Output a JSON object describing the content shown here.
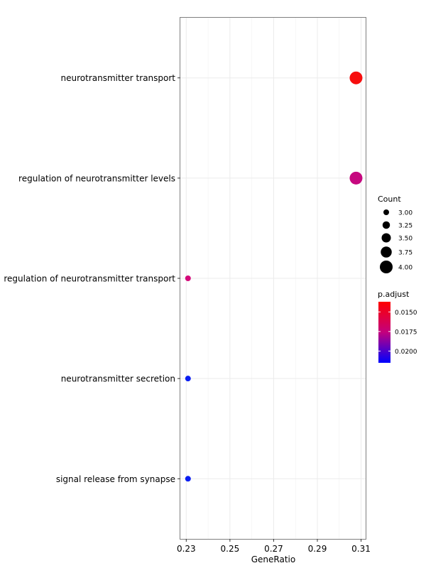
{
  "chart_data": {
    "type": "scatter",
    "xlabel": "GeneRatio",
    "xlim": [
      0.2273,
      0.3121
    ],
    "xticks": [
      0.23,
      0.25,
      0.27,
      0.29,
      0.31
    ],
    "xtick_labels": [
      "0.23",
      "0.25",
      "0.27",
      "0.29",
      "0.31"
    ],
    "categories": [
      "neurotransmitter transport",
      "regulation of neurotransmitter levels",
      "regulation of neurotransmitter transport",
      "neurotransmitter secretion",
      "signal release from synapse"
    ],
    "points": [
      {
        "term": "neurotransmitter transport",
        "gene_ratio": 0.3077,
        "count": 4,
        "p_adjust": 0.0137,
        "color": "#f70e0e"
      },
      {
        "term": "regulation of neurotransmitter levels",
        "gene_ratio": 0.3077,
        "count": 4,
        "p_adjust": 0.0176,
        "color": "#c6087f"
      },
      {
        "term": "regulation of neurotransmitter transport",
        "gene_ratio": 0.2308,
        "count": 3,
        "p_adjust": 0.0171,
        "color": "#d4097a"
      },
      {
        "term": "neurotransmitter secretion",
        "gene_ratio": 0.2308,
        "count": 3,
        "p_adjust": 0.0215,
        "color": "#0a1ef2"
      },
      {
        "term": "signal release from synapse",
        "gene_ratio": 0.2308,
        "count": 3,
        "p_adjust": 0.0215,
        "color": "#0a1ef2"
      }
    ],
    "legend_count": {
      "title": "Count",
      "values": [
        3.0,
        3.25,
        3.5,
        3.75,
        4.0
      ],
      "labels": [
        "3.00",
        "3.25",
        "3.50",
        "3.75",
        "4.00"
      ]
    },
    "legend_padjust": {
      "title": "p.adjust",
      "range": [
        0.0137,
        0.0215
      ],
      "tick_values": [
        0.015,
        0.0175,
        0.02
      ],
      "tick_labels": [
        "0.0150",
        "0.0175",
        "0.0200"
      ],
      "low_color": "#ff0000",
      "high_color": "#0000ff"
    },
    "grid": true,
    "legend_position": "right"
  }
}
